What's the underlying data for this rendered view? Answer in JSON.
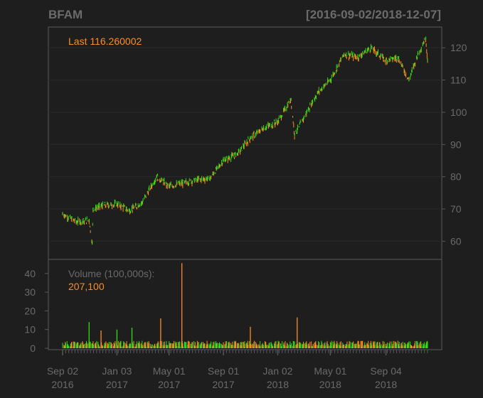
{
  "colors": {
    "background": "#1e1e1e",
    "panel_border": "#5a5a5a",
    "grid": "#2a2a2a",
    "axis_text": "#6a6a6a",
    "title_text": "#6b6b6b",
    "up_color": "#33dd11",
    "down_color": "#ff8c1a",
    "last_value_color": "#ff8c1a",
    "volume_label_color": "#6a6a6a"
  },
  "chart_data": [
    {
      "type": "line",
      "title": "BFAM",
      "date_range": "[2016-09-02/2018-12-07]",
      "annotation": "Last 116.260002",
      "ylim": [
        57,
        126
      ],
      "y_ticks": [
        "120",
        "110",
        "100",
        "90",
        "80",
        "70",
        "60"
      ],
      "y_tick_values": [
        120,
        110,
        100,
        90,
        80,
        70,
        60
      ],
      "grid": true,
      "series": [
        {
          "x": [
            "2016-09-02",
            "2016-10-03",
            "2016-11-01",
            "2016-11-08",
            "2016-11-10",
            "2016-12-01",
            "2017-01-03",
            "2017-02-01",
            "2017-03-01",
            "2017-04-03",
            "2017-05-01",
            "2017-06-01",
            "2017-07-03",
            "2017-08-01",
            "2017-09-01",
            "2017-10-02",
            "2017-11-01",
            "2017-12-01",
            "2018-01-02",
            "2018-02-01",
            "2018-02-09",
            "2018-03-01",
            "2018-04-02",
            "2018-05-01",
            "2018-06-01",
            "2018-07-02",
            "2018-08-01",
            "2018-09-04",
            "2018-10-01",
            "2018-10-26",
            "2018-11-15",
            "2018-12-03",
            "2018-12-07"
          ],
          "y": [
            68.5,
            66.0,
            66.5,
            59.5,
            70.0,
            71.0,
            71.5,
            69.5,
            72.0,
            80.0,
            77.0,
            78.0,
            79.0,
            79.5,
            85.0,
            87.0,
            92.0,
            95.0,
            97.0,
            104.0,
            93.0,
            98.0,
            106.0,
            110.0,
            118.0,
            117.0,
            120.0,
            116.0,
            117.0,
            110.0,
            118.0,
            123.0,
            116.26
          ]
        }
      ]
    },
    {
      "type": "bar",
      "label": "Volume (100,000s):",
      "last_value": "207,100",
      "ylim": [
        0,
        46
      ],
      "y_ticks": [
        "40",
        "30",
        "20",
        "10",
        "0"
      ],
      "y_tick_values": [
        40,
        30,
        20,
        10,
        0
      ],
      "spikes": [
        {
          "date": "2016-11-01",
          "value": 14,
          "direction": "up"
        },
        {
          "date": "2016-11-28",
          "value": 9.5,
          "direction": "down"
        },
        {
          "date": "2017-01-03",
          "value": 10,
          "direction": "up"
        },
        {
          "date": "2017-02-06",
          "value": 11,
          "direction": "up"
        },
        {
          "date": "2017-04-12",
          "value": 16,
          "direction": "down"
        },
        {
          "date": "2017-05-30",
          "value": 45.5,
          "direction": "down"
        },
        {
          "date": "2017-11-01",
          "value": 11.5,
          "direction": "down"
        },
        {
          "date": "2018-02-15",
          "value": 16.5,
          "direction": "down"
        }
      ],
      "typical_value": 2
    }
  ],
  "x_axis": {
    "tick_labels": [
      {
        "line1": "Sep 02",
        "line2": "2016"
      },
      {
        "line1": "Jan 03",
        "line2": "2017"
      },
      {
        "line1": "May 01",
        "line2": "2017"
      },
      {
        "line1": "Sep 01",
        "line2": "2017"
      },
      {
        "line1": "Jan 02",
        "line2": "2018"
      },
      {
        "line1": "May 01",
        "line2": "2018"
      },
      {
        "line1": "Sep 04",
        "line2": "2018"
      }
    ],
    "tick_dates": [
      "2016-09-02",
      "2017-01-03",
      "2017-05-01",
      "2017-09-01",
      "2018-01-02",
      "2018-05-01",
      "2018-09-04"
    ],
    "start": "2016-09-02",
    "end": "2018-12-07"
  }
}
